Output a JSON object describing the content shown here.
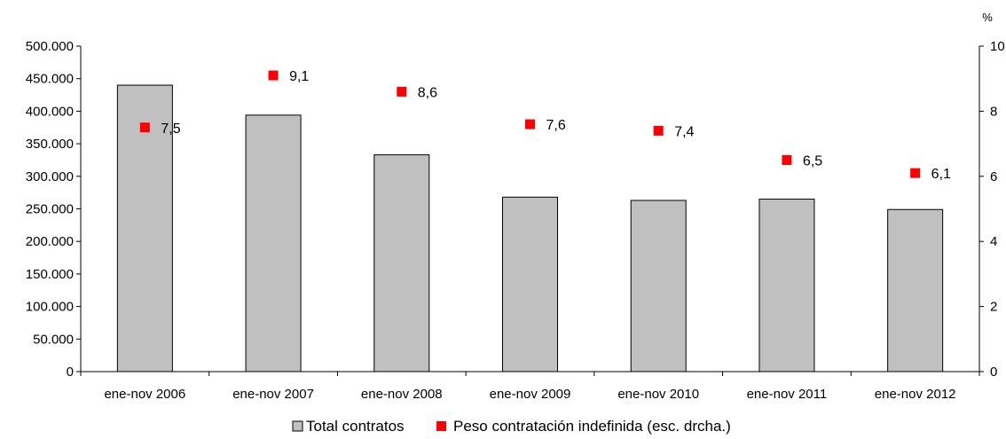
{
  "chart_data": {
    "type": "bar",
    "categories": [
      "ene-nov 2006",
      "ene-nov 2007",
      "ene-nov 2008",
      "ene-nov 2009",
      "ene-nov 2010",
      "ene-nov 2011",
      "ene-nov 2012"
    ],
    "series": [
      {
        "name": "Total contratos",
        "type": "bar",
        "axis": "left",
        "color": "#c0c0c0",
        "values": [
          440000,
          394000,
          333000,
          268000,
          263000,
          265000,
          249000
        ]
      },
      {
        "name": "Peso contratación indefinida (esc. drcha.)",
        "type": "scatter",
        "axis": "right",
        "color": "#ff0000",
        "values": [
          7.5,
          9.1,
          8.6,
          7.6,
          7.4,
          6.5,
          6.1
        ],
        "labels": [
          "7,5",
          "9,1",
          "8,6",
          "7,6",
          "7,4",
          "6,5",
          "6,1"
        ]
      }
    ],
    "y_left": {
      "lim": [
        0,
        500000
      ],
      "ticks": [
        0,
        50000,
        100000,
        150000,
        200000,
        250000,
        300000,
        350000,
        400000,
        450000,
        500000
      ],
      "tick_labels": [
        "0",
        "50.000",
        "100.000",
        "150.000",
        "200.000",
        "250.000",
        "300.000",
        "350.000",
        "400.000",
        "450.000",
        "500.000"
      ]
    },
    "y_right": {
      "unit": "%",
      "lim": [
        0,
        10
      ],
      "ticks": [
        0,
        2,
        4,
        6,
        8,
        10
      ],
      "tick_labels": [
        "0",
        "2",
        "4",
        "6",
        "8",
        "10"
      ]
    },
    "grid": false,
    "legend": {
      "position": "bottom",
      "items": [
        "Total contratos",
        "Peso contratación indefinida (esc. drcha.)"
      ]
    }
  }
}
